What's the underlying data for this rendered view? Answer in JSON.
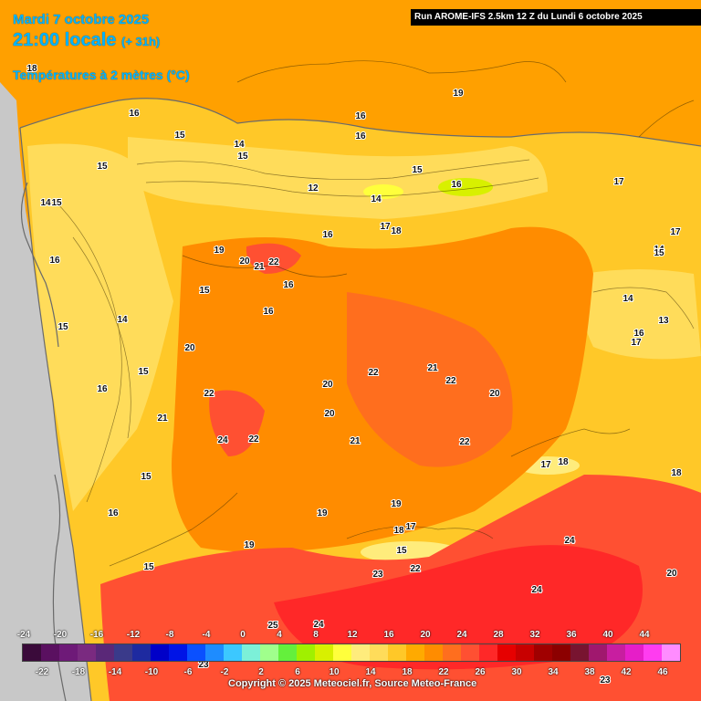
{
  "header": {
    "date": "Mardi 7 octobre 2025",
    "time": "21:00 locale",
    "offset": "(+ 31h)",
    "parameter": "Températures à 2 mètres (°C)"
  },
  "run_info": "Run AROME-IFS 2.5km 12 Z du Lundi 6 octobre 2025",
  "copyright": "Copyright © 2025 Meteociel.fr, Source Meteo-France",
  "legend": {
    "top_labels": [
      "-24",
      "-20",
      "-16",
      "-12",
      "-8",
      "-4",
      "0",
      "4",
      "8",
      "12",
      "16",
      "20",
      "24",
      "28",
      "32",
      "36",
      "40",
      "44"
    ],
    "bottom_labels": [
      "-22",
      "-18",
      "-14",
      "-10",
      "-6",
      "-2",
      "2",
      "6",
      "10",
      "14",
      "18",
      "22",
      "26",
      "30",
      "34",
      "38",
      "42",
      "46"
    ],
    "colors": [
      "#3a0a3a",
      "#5a1060",
      "#6e1a78",
      "#7a2a80",
      "#5a2878",
      "#3a3a8a",
      "#1e2aa0",
      "#0000c8",
      "#0014e6",
      "#0a50ff",
      "#1e8cff",
      "#3cc8ff",
      "#7cf0d8",
      "#a0ff8c",
      "#64f03c",
      "#a0f000",
      "#d8f000",
      "#ffff3c",
      "#ffec7c",
      "#ffdc5a",
      "#ffc828",
      "#ffaa00",
      "#ff8c00",
      "#ff6e1e",
      "#ff5032",
      "#ff2828",
      "#e60000",
      "#c80000",
      "#a00000",
      "#8c0000",
      "#781430",
      "#a0186e",
      "#c81ea0",
      "#e61ec8",
      "#ff3cf0",
      "#ff8cff"
    ]
  },
  "map_labels": [
    {
      "t": "18"
    },
    {
      "t": "19"
    },
    {
      "t": "16"
    },
    {
      "t": "15"
    },
    {
      "t": "15"
    },
    {
      "t": "14"
    },
    {
      "t": "15"
    },
    {
      "t": "16"
    },
    {
      "t": "16"
    },
    {
      "t": "15"
    },
    {
      "t": "12"
    },
    {
      "t": "14"
    },
    {
      "t": "16"
    },
    {
      "t": "17"
    },
    {
      "t": "18"
    },
    {
      "t": "16"
    },
    {
      "t": "17"
    },
    {
      "t": "17"
    },
    {
      "t": "14"
    },
    {
      "t": "15"
    },
    {
      "t": "14"
    },
    {
      "t": "13"
    },
    {
      "t": "16"
    },
    {
      "t": "17"
    },
    {
      "t": "19"
    },
    {
      "t": "20"
    },
    {
      "t": "21"
    },
    {
      "t": "22"
    },
    {
      "t": "16"
    },
    {
      "t": "16"
    },
    {
      "t": "15"
    },
    {
      "t": "14"
    },
    {
      "t": "20"
    },
    {
      "t": "22"
    },
    {
      "t": "21"
    },
    {
      "t": "22"
    },
    {
      "t": "20"
    },
    {
      "t": "22"
    },
    {
      "t": "20"
    },
    {
      "t": "20"
    },
    {
      "t": "21"
    },
    {
      "t": "22"
    },
    {
      "t": "15"
    },
    {
      "t": "14"
    },
    {
      "t": "15"
    },
    {
      "t": "16"
    },
    {
      "t": "15"
    },
    {
      "t": "16"
    },
    {
      "t": "22"
    },
    {
      "t": "21"
    },
    {
      "t": "24"
    },
    {
      "t": "22"
    },
    {
      "t": "18"
    },
    {
      "t": "18"
    },
    {
      "t": "17"
    },
    {
      "t": "19"
    },
    {
      "t": "19"
    },
    {
      "t": "19"
    },
    {
      "t": "18"
    },
    {
      "t": "17"
    },
    {
      "t": "15"
    },
    {
      "t": "23"
    },
    {
      "t": "22"
    },
    {
      "t": "24"
    },
    {
      "t": "20"
    },
    {
      "t": "24"
    },
    {
      "t": "15"
    },
    {
      "t": "15"
    },
    {
      "t": "16"
    },
    {
      "t": "25"
    },
    {
      "t": "24"
    },
    {
      "t": "23"
    },
    {
      "t": "23"
    }
  ]
}
